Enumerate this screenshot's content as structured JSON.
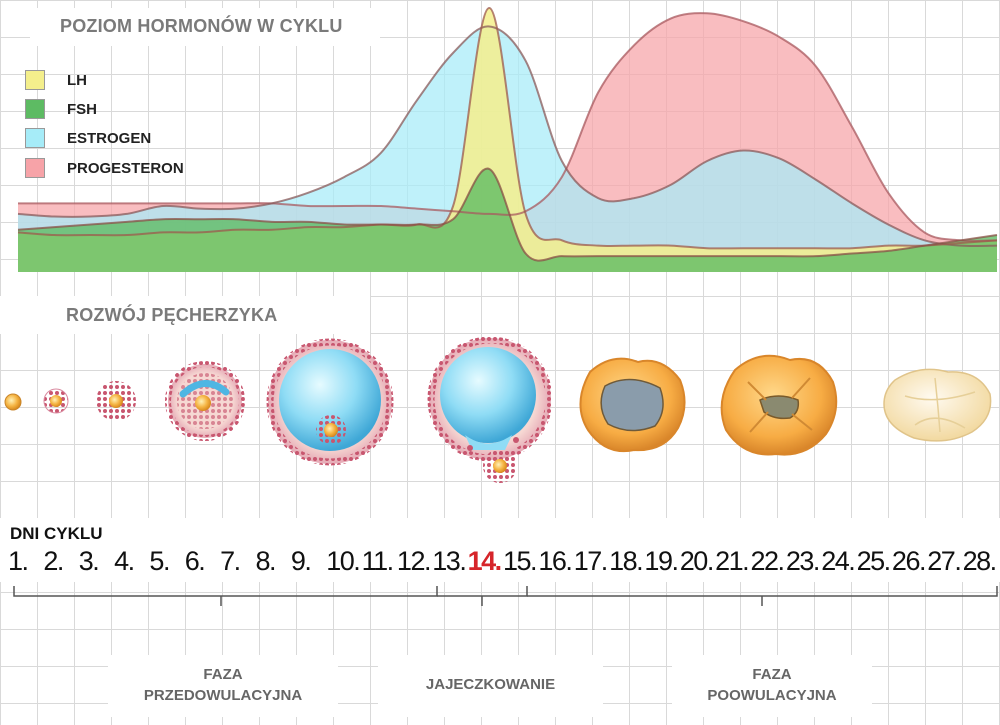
{
  "hormones": {
    "title": "POZIOM HORMONÓW W CYKLU",
    "legend": [
      {
        "key": "lh",
        "label": "LH",
        "color": "#f4ef8c"
      },
      {
        "key": "fsh",
        "label": "FSH",
        "color": "#5dbb63"
      },
      {
        "key": "estrogen",
        "label": "ESTROGEN",
        "color": "#a6ecf8"
      },
      {
        "key": "progesteron",
        "label": "PROGESTERON",
        "color": "#f7a3a8"
      }
    ]
  },
  "chart_data": {
    "type": "area",
    "x": [
      1,
      2,
      3,
      4,
      5,
      6,
      7,
      8,
      9,
      10,
      11,
      12,
      13,
      14,
      15,
      16,
      17,
      18,
      19,
      20,
      21,
      22,
      23,
      24,
      25,
      26,
      27,
      28
    ],
    "ylim": [
      0,
      10
    ],
    "series": [
      {
        "name": "LH",
        "values": [
          1.5,
          1.4,
          1.4,
          1.4,
          1.5,
          1.5,
          1.6,
          1.6,
          1.7,
          1.7,
          1.8,
          1.8,
          2.5,
          10,
          2.2,
          1.2,
          1.0,
          1.0,
          1.0,
          0.9,
          0.9,
          0.9,
          0.9,
          0.9,
          1.0,
          1.0,
          1.1,
          1.2
        ]
      },
      {
        "name": "FSH",
        "values": [
          1.6,
          1.7,
          1.8,
          1.9,
          2.0,
          2.0,
          2.0,
          1.9,
          1.9,
          1.8,
          1.8,
          1.8,
          2.0,
          3.9,
          0.7,
          0.6,
          0.6,
          0.6,
          0.6,
          0.6,
          0.6,
          0.6,
          0.6,
          0.7,
          0.8,
          1.0,
          1.2,
          1.4
        ]
      },
      {
        "name": "ESTROGEN",
        "values": [
          2.2,
          2.1,
          2.1,
          2.2,
          2.5,
          2.4,
          2.4,
          2.6,
          3.0,
          3.6,
          4.5,
          6.5,
          8.3,
          9.3,
          8.0,
          4.2,
          2.8,
          2.8,
          3.3,
          4.2,
          4.6,
          4.3,
          3.5,
          2.6,
          1.8,
          1.2,
          1.0,
          1.0
        ]
      },
      {
        "name": "PROGESTERON",
        "values": [
          2.6,
          2.6,
          2.6,
          2.6,
          2.6,
          2.6,
          2.6,
          2.6,
          2.5,
          2.5,
          2.5,
          2.4,
          2.3,
          2.2,
          2.3,
          3.6,
          6.8,
          8.6,
          9.6,
          9.8,
          9.5,
          8.9,
          7.8,
          5.5,
          3.0,
          1.5,
          1.2,
          1.2
        ]
      }
    ]
  },
  "follicle": {
    "title": "ROZWÓJ PĘCHERZYKA",
    "stages": [
      "stage-1",
      "stage-2",
      "stage-3",
      "stage-4",
      "stage-5",
      "stage-6",
      "stage-7",
      "stage-8",
      "stage-9"
    ]
  },
  "days": {
    "title": "DNI CYKLU",
    "labels": [
      "1.",
      "2.",
      "3.",
      "4.",
      "5.",
      "6.",
      "7.",
      "8.",
      "9.",
      "10.",
      "11.",
      "12.",
      "13.",
      "14.",
      "15.",
      "16.",
      "17.",
      "18.",
      "19.",
      "20.",
      "21.",
      "22.",
      "23.",
      "24.",
      "25.",
      "26.",
      "27.",
      "28."
    ],
    "highlight": "14."
  },
  "phases": {
    "pre": "FAZA\nPRZEDOWULACYJNA",
    "ovulation": "JAJECZKOWANIE",
    "post": "FAZA\nPOOWULACYJNA"
  }
}
